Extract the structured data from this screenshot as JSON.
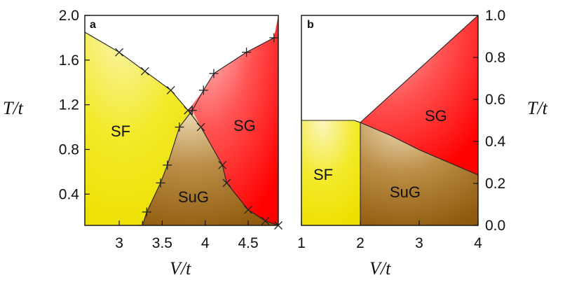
{
  "chart_data": [
    {
      "panel": "a",
      "type": "area",
      "xlabel": "V/t",
      "ylabel": "T/t",
      "xlim": [
        2.6,
        4.85
      ],
      "ylim": [
        0.12,
        2.0
      ],
      "xticks": [
        3,
        3.5,
        4,
        4.5
      ],
      "xtick_labels": [
        "3",
        "3.5",
        "4",
        "4.5"
      ],
      "yticks": [
        0.4,
        0.8,
        1.2,
        1.6,
        2.0
      ],
      "ytick_labels": [
        "0.4",
        "0.8",
        "1.2",
        "1.6",
        "2.0"
      ],
      "region_labels": [
        "SF",
        "SG",
        "SuG"
      ],
      "colors": {
        "SF": "#f2ea10",
        "SG": "#ff1010",
        "SuG": "#9b6814"
      },
      "series": [
        {
          "marker": "x",
          "points": [
            [
              2.6,
              1.85
            ],
            [
              3.0,
              1.67
            ],
            [
              3.3,
              1.5
            ],
            [
              3.6,
              1.33
            ],
            [
              3.8,
              1.15
            ],
            [
              3.95,
              1.0
            ],
            [
              4.2,
              0.66
            ],
            [
              4.25,
              0.5
            ],
            [
              4.5,
              0.26
            ],
            [
              4.7,
              0.16
            ],
            [
              4.85,
              0.12
            ]
          ]
        },
        {
          "marker": "+",
          "points": [
            [
              3.27,
              0.12
            ],
            [
              3.32,
              0.24
            ],
            [
              3.48,
              0.5
            ],
            [
              3.56,
              0.66
            ],
            [
              3.7,
              1.0
            ],
            [
              3.85,
              1.15
            ],
            [
              3.98,
              1.33
            ],
            [
              4.1,
              1.48
            ],
            [
              4.48,
              1.67
            ],
            [
              4.8,
              1.8
            ]
          ]
        }
      ],
      "legend": "none",
      "grid": false
    },
    {
      "panel": "b",
      "type": "area",
      "xlabel": "V/t",
      "ylabel": "T/t",
      "xlim": [
        1,
        4
      ],
      "ylim": [
        0,
        1.0
      ],
      "xticks": [
        1,
        2,
        3,
        4
      ],
      "xtick_labels": [
        "1",
        "2",
        "3",
        "4"
      ],
      "yticks": [
        0.0,
        0.2,
        0.4,
        0.6,
        0.8,
        1.0
      ],
      "ytick_labels": [
        "0.0",
        "0.2",
        "0.4",
        "0.6",
        "0.8",
        "1.0"
      ],
      "region_labels": [
        "SF",
        "SG",
        "SuG"
      ],
      "colors": {
        "SF": "#f2ea10",
        "SG": "#ff1010",
        "SuG": "#9b6814"
      },
      "series": [
        {
          "marker": "none",
          "points": [
            [
              1,
              0.5
            ],
            [
              1.9,
              0.5
            ],
            [
              2.0,
              0.49
            ]
          ]
        },
        {
          "marker": "none",
          "points": [
            [
              2.0,
              0.0
            ],
            [
              2.0,
              0.49
            ]
          ]
        },
        {
          "marker": "none",
          "points": [
            [
              2.0,
              0.49
            ],
            [
              4.0,
              1.0
            ]
          ]
        },
        {
          "marker": "none",
          "points": [
            [
              2.0,
              0.49
            ],
            [
              2.5,
              0.43
            ],
            [
              3.0,
              0.36
            ],
            [
              3.5,
              0.3
            ],
            [
              4.0,
              0.24
            ]
          ]
        }
      ],
      "legend": "none",
      "grid": false
    }
  ]
}
